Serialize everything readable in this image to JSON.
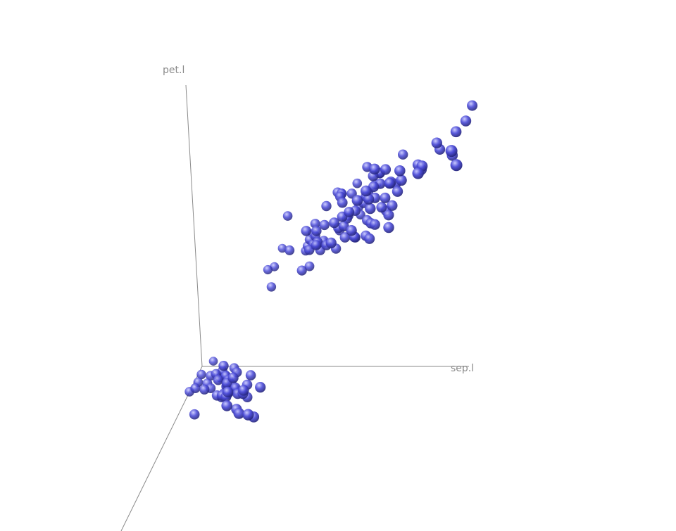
{
  "chart_data": {
    "type": "scatter",
    "dimensions": 3,
    "axes": {
      "x": {
        "label": "sep.l"
      },
      "y": {
        "label": "pet.l"
      },
      "z": {
        "label": ""
      }
    },
    "marker": {
      "shape": "sphere",
      "color": "#4b4bd8",
      "highlight": "#c8c8ff",
      "shadow": "#1e1e6a"
    },
    "points": [
      [
        5.1,
        1.4,
        3.5
      ],
      [
        4.9,
        1.4,
        3.0
      ],
      [
        4.7,
        1.3,
        3.2
      ],
      [
        4.6,
        1.5,
        3.1
      ],
      [
        5.0,
        1.4,
        3.6
      ],
      [
        5.4,
        1.7,
        3.9
      ],
      [
        4.6,
        1.4,
        3.4
      ],
      [
        5.0,
        1.5,
        3.4
      ],
      [
        4.4,
        1.4,
        2.9
      ],
      [
        4.9,
        1.5,
        3.1
      ],
      [
        5.4,
        1.5,
        3.7
      ],
      [
        4.8,
        1.6,
        3.4
      ],
      [
        4.8,
        1.4,
        3.0
      ],
      [
        4.3,
        1.1,
        3.0
      ],
      [
        5.8,
        1.2,
        4.0
      ],
      [
        5.7,
        1.5,
        4.4
      ],
      [
        5.4,
        1.3,
        3.9
      ],
      [
        5.1,
        1.4,
        3.5
      ],
      [
        5.7,
        1.7,
        3.8
      ],
      [
        5.1,
        1.5,
        3.8
      ],
      [
        5.4,
        1.7,
        3.4
      ],
      [
        5.1,
        1.5,
        3.7
      ],
      [
        4.6,
        1.0,
        3.6
      ],
      [
        5.1,
        1.7,
        3.3
      ],
      [
        4.8,
        1.9,
        3.4
      ],
      [
        5.0,
        1.6,
        3.0
      ],
      [
        5.0,
        1.6,
        3.4
      ],
      [
        5.2,
        1.5,
        3.5
      ],
      [
        5.2,
        1.4,
        3.4
      ],
      [
        4.7,
        1.6,
        3.2
      ],
      [
        4.8,
        1.6,
        3.1
      ],
      [
        5.4,
        1.5,
        3.4
      ],
      [
        5.2,
        1.5,
        4.1
      ],
      [
        5.5,
        1.4,
        4.2
      ],
      [
        4.9,
        1.5,
        3.1
      ],
      [
        5.0,
        1.2,
        3.2
      ],
      [
        5.5,
        1.3,
        3.5
      ],
      [
        4.9,
        1.4,
        3.6
      ],
      [
        4.4,
        1.3,
        3.0
      ],
      [
        5.1,
        1.5,
        3.4
      ],
      [
        5.0,
        1.3,
        3.5
      ],
      [
        4.5,
        1.3,
        2.3
      ],
      [
        4.4,
        1.3,
        3.2
      ],
      [
        5.0,
        1.6,
        3.5
      ],
      [
        5.1,
        1.9,
        3.8
      ],
      [
        4.8,
        1.4,
        3.0
      ],
      [
        5.1,
        1.6,
        3.8
      ],
      [
        4.6,
        1.4,
        3.2
      ],
      [
        5.3,
        1.5,
        3.7
      ],
      [
        5.0,
        1.4,
        3.3
      ],
      [
        7.0,
        4.7,
        3.2
      ],
      [
        6.4,
        4.5,
        3.2
      ],
      [
        6.9,
        4.9,
        3.1
      ],
      [
        5.5,
        4.0,
        2.3
      ],
      [
        6.5,
        4.6,
        2.8
      ],
      [
        5.7,
        4.5,
        2.8
      ],
      [
        6.3,
        4.7,
        3.3
      ],
      [
        4.9,
        3.3,
        2.4
      ],
      [
        6.6,
        4.6,
        2.9
      ],
      [
        5.2,
        3.9,
        2.7
      ],
      [
        5.0,
        3.5,
        2.0
      ],
      [
        5.9,
        4.2,
        3.0
      ],
      [
        6.0,
        4.0,
        2.2
      ],
      [
        6.1,
        4.7,
        2.9
      ],
      [
        5.6,
        3.6,
        2.9
      ],
      [
        6.7,
        4.4,
        3.1
      ],
      [
        5.6,
        4.5,
        3.0
      ],
      [
        5.8,
        4.1,
        2.7
      ],
      [
        6.2,
        4.5,
        2.2
      ],
      [
        5.6,
        3.9,
        2.5
      ],
      [
        5.9,
        4.8,
        3.2
      ],
      [
        6.1,
        4.0,
        2.8
      ],
      [
        6.3,
        4.9,
        2.5
      ],
      [
        6.1,
        4.7,
        2.8
      ],
      [
        6.4,
        4.3,
        2.9
      ],
      [
        6.6,
        4.4,
        3.0
      ],
      [
        6.8,
        4.8,
        2.8
      ],
      [
        6.7,
        5.0,
        3.0
      ],
      [
        6.0,
        4.5,
        2.9
      ],
      [
        5.7,
        3.5,
        2.6
      ],
      [
        5.5,
        3.8,
        2.4
      ],
      [
        5.5,
        3.7,
        2.4
      ],
      [
        5.8,
        3.9,
        2.7
      ],
      [
        6.0,
        5.1,
        2.7
      ],
      [
        5.4,
        4.5,
        3.0
      ],
      [
        6.0,
        4.5,
        3.4
      ],
      [
        6.7,
        4.7,
        3.1
      ],
      [
        6.3,
        4.4,
        2.3
      ],
      [
        5.6,
        4.1,
        3.0
      ],
      [
        5.5,
        4.0,
        2.5
      ],
      [
        5.5,
        4.4,
        2.6
      ],
      [
        6.1,
        4.6,
        3.0
      ],
      [
        5.8,
        4.0,
        2.6
      ],
      [
        5.0,
        3.3,
        2.3
      ],
      [
        5.6,
        4.2,
        2.7
      ],
      [
        5.7,
        4.2,
        3.0
      ],
      [
        5.7,
        4.2,
        2.9
      ],
      [
        6.2,
        4.3,
        2.9
      ],
      [
        5.1,
        3.0,
        2.5
      ],
      [
        5.7,
        4.1,
        2.8
      ],
      [
        6.3,
        6.0,
        3.3
      ],
      [
        5.8,
        5.1,
        2.7
      ],
      [
        7.1,
        5.9,
        3.0
      ],
      [
        6.3,
        5.6,
        2.9
      ],
      [
        6.5,
        5.8,
        3.0
      ],
      [
        7.6,
        6.6,
        3.0
      ],
      [
        4.9,
        4.5,
        2.5
      ],
      [
        7.3,
        6.3,
        2.9
      ],
      [
        6.7,
        5.8,
        2.5
      ],
      [
        7.2,
        6.1,
        3.6
      ],
      [
        6.5,
        5.1,
        3.2
      ],
      [
        6.4,
        5.3,
        2.7
      ],
      [
        6.8,
        5.5,
        3.0
      ],
      [
        5.7,
        5.0,
        2.5
      ],
      [
        5.8,
        5.1,
        2.8
      ],
      [
        6.4,
        5.3,
        3.2
      ],
      [
        6.5,
        5.5,
        3.0
      ],
      [
        7.7,
        6.7,
        3.8
      ],
      [
        7.7,
        6.9,
        2.6
      ],
      [
        6.0,
        5.0,
        2.2
      ],
      [
        6.9,
        5.7,
        3.2
      ],
      [
        5.6,
        4.9,
        2.8
      ],
      [
        7.7,
        6.7,
        2.8
      ],
      [
        6.3,
        4.9,
        2.7
      ],
      [
        6.7,
        5.7,
        3.3
      ],
      [
        7.2,
        6.0,
        3.2
      ],
      [
        6.2,
        4.8,
        2.8
      ],
      [
        6.1,
        4.9,
        3.0
      ],
      [
        6.4,
        5.6,
        2.8
      ],
      [
        7.2,
        5.8,
        3.0
      ],
      [
        7.4,
        6.1,
        2.8
      ],
      [
        7.9,
        6.4,
        3.8
      ],
      [
        6.4,
        5.6,
        2.8
      ],
      [
        6.3,
        5.1,
        2.8
      ],
      [
        6.1,
        5.6,
        2.6
      ],
      [
        7.7,
        6.1,
        3.0
      ],
      [
        6.3,
        5.6,
        3.4
      ],
      [
        6.4,
        5.5,
        3.1
      ],
      [
        6.0,
        4.8,
        3.0
      ],
      [
        6.9,
        5.4,
        3.1
      ],
      [
        6.7,
        5.6,
        3.1
      ],
      [
        6.9,
        5.1,
        3.1
      ],
      [
        5.8,
        5.1,
        2.7
      ],
      [
        6.8,
        5.9,
        3.2
      ],
      [
        6.7,
        5.7,
        3.3
      ],
      [
        6.7,
        5.2,
        3.0
      ],
      [
        6.3,
        5.0,
        2.5
      ],
      [
        6.5,
        5.2,
        3.0
      ],
      [
        6.2,
        5.4,
        3.4
      ],
      [
        5.9,
        5.1,
        3.0
      ]
    ]
  }
}
